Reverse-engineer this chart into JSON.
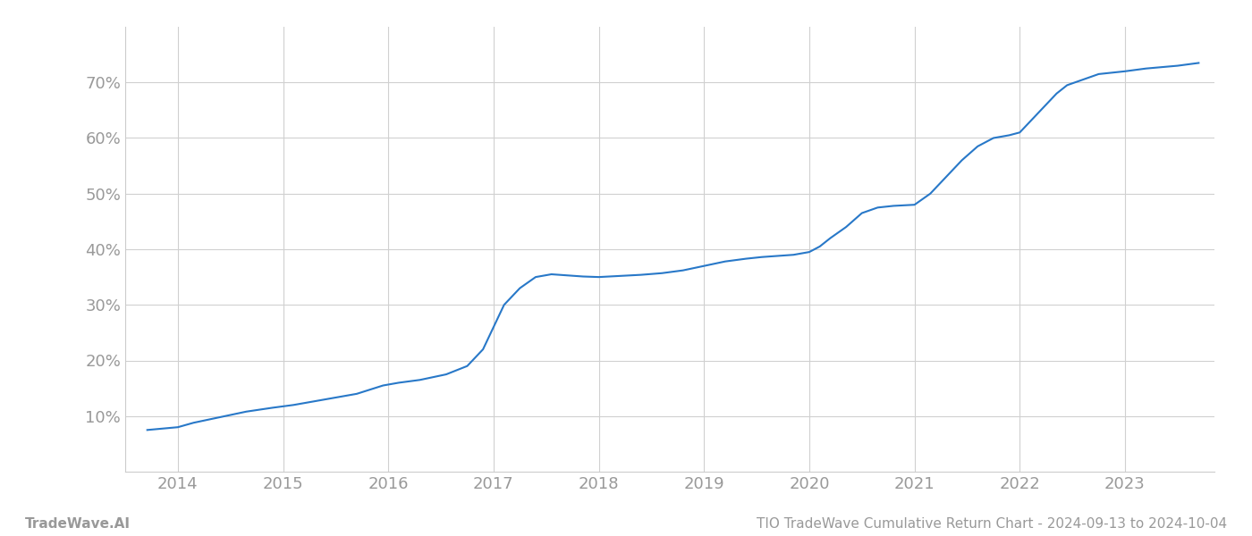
{
  "x_years": [
    2013.71,
    2014.0,
    2014.15,
    2014.4,
    2014.65,
    2014.9,
    2015.1,
    2015.4,
    2015.7,
    2015.95,
    2016.1,
    2016.3,
    2016.55,
    2016.75,
    2016.9,
    2017.0,
    2017.1,
    2017.25,
    2017.4,
    2017.55,
    2017.7,
    2017.85,
    2018.0,
    2018.2,
    2018.4,
    2018.6,
    2018.8,
    2019.0,
    2019.2,
    2019.4,
    2019.55,
    2019.7,
    2019.85,
    2020.0,
    2020.1,
    2020.2,
    2020.35,
    2020.5,
    2020.65,
    2020.8,
    2021.0,
    2021.15,
    2021.3,
    2021.45,
    2021.6,
    2021.75,
    2021.9,
    2022.0,
    2022.1,
    2022.25,
    2022.35,
    2022.45,
    2022.6,
    2022.75,
    2022.9,
    2023.0,
    2023.2,
    2023.5,
    2023.7
  ],
  "y_values": [
    7.5,
    8.0,
    8.8,
    9.8,
    10.8,
    11.5,
    12.0,
    13.0,
    14.0,
    15.5,
    16.0,
    16.5,
    17.5,
    19.0,
    22.0,
    26.0,
    30.0,
    33.0,
    35.0,
    35.5,
    35.3,
    35.1,
    35.0,
    35.2,
    35.4,
    35.7,
    36.2,
    37.0,
    37.8,
    38.3,
    38.6,
    38.8,
    39.0,
    39.5,
    40.5,
    42.0,
    44.0,
    46.5,
    47.5,
    47.8,
    48.0,
    50.0,
    53.0,
    56.0,
    58.5,
    60.0,
    60.5,
    61.0,
    63.0,
    66.0,
    68.0,
    69.5,
    70.5,
    71.5,
    71.8,
    72.0,
    72.5,
    73.0,
    73.5
  ],
  "line_color": "#2878c8",
  "line_width": 1.5,
  "background_color": "#ffffff",
  "grid_color": "#d0d0d0",
  "xlim": [
    2013.5,
    2023.85
  ],
  "ylim": [
    0,
    80
  ],
  "yticks": [
    10,
    20,
    30,
    40,
    50,
    60,
    70
  ],
  "xticks": [
    2014,
    2015,
    2016,
    2017,
    2018,
    2019,
    2020,
    2021,
    2022,
    2023
  ],
  "tick_color": "#999999",
  "tick_fontsize": 13,
  "footer_left": "TradeWave.AI",
  "footer_right": "TIO TradeWave Cumulative Return Chart - 2024-09-13 to 2024-10-04",
  "footer_color": "#999999",
  "footer_fontsize": 11
}
